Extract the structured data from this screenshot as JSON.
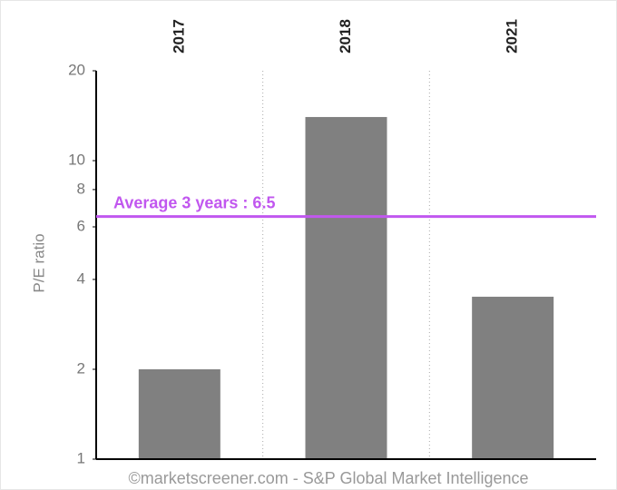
{
  "chart_data": {
    "type": "bar",
    "y_label": "P/E ratio",
    "categories": [
      "2017",
      "2018",
      "2021"
    ],
    "values": [
      2,
      14,
      3.5
    ],
    "color": "#808080",
    "ylim": [
      1,
      20
    ],
    "yticks": [
      1,
      2,
      4,
      6,
      8,
      10,
      20
    ],
    "log_scale": true,
    "average": {
      "label": "Average 3 years : 6.5",
      "value": 6.5,
      "color": "#c157ef"
    },
    "source": "©marketscreener.com - S&P Global Market Intelligence"
  }
}
